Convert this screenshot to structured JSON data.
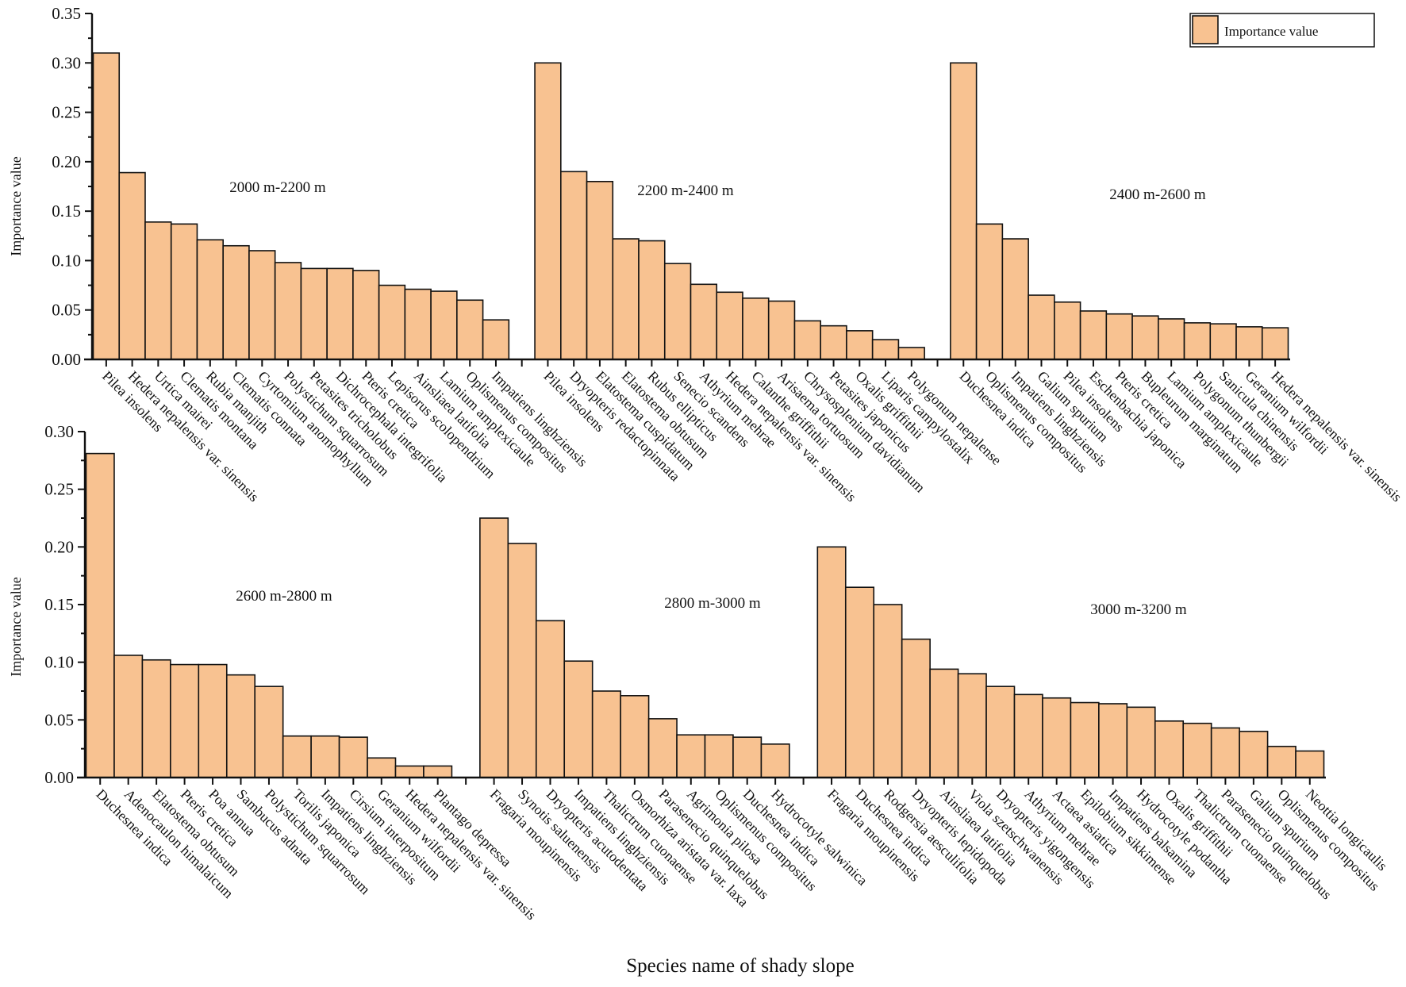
{
  "chart_data": {
    "type": "bar",
    "xlabel": "Species name of shady slope",
    "ylabel": "Importance value",
    "legend": {
      "label": "Importance value",
      "placement": "top-right"
    },
    "colors": {
      "bar": "#f8c291",
      "edge": "#111111"
    },
    "rows": [
      {
        "ylim": [
          0,
          0.35
        ],
        "yticks": [
          "0.00",
          "0.05",
          "0.10",
          "0.15",
          "0.20",
          "0.25",
          "0.30",
          "0.35"
        ],
        "groups": [
          {
            "label": "2000 m-2200 m",
            "categories": [
              "Pilea insolens",
              "Hedera nepalensis var. sinensis",
              "Urtica mairei",
              "Clematis montana",
              "Rubia manjith",
              "Clematis connata",
              "Cyrtomium anomophyllum",
              "Polystichum squarrosum",
              "Petasites tricholobus",
              "Dichrocephala integrifolia",
              "Pteris cretica",
              "Lepisorus scolopendrium",
              "Ainsliaea latifolia",
              "Lamium amplexicaule",
              "Oplismenus compositus",
              "Impatiens linghziensis"
            ],
            "values": [
              0.31,
              0.189,
              0.139,
              0.137,
              0.121,
              0.115,
              0.11,
              0.098,
              0.092,
              0.092,
              0.09,
              0.075,
              0.071,
              0.069,
              0.06,
              0.04
            ]
          },
          {
            "label": "2200 m-2400 m",
            "categories": [
              "Pilea insolens",
              "Dryopteris redactopinnata",
              "Elatostema cuspidatum",
              "Elatostema obtusum",
              "Rubus ellipticus",
              "Senecio scandens",
              "Athyrium mehrae",
              "Hedera nepalensis var. sinensis",
              "Calanthe griffithii",
              "Arisaema tortuosum",
              "Chrysosplenium davidianum",
              "Petasites japonicus",
              "Oxalis griffithii",
              "Liparis campylostalix",
              "Polygonum nepalense"
            ],
            "values": [
              0.3,
              0.19,
              0.18,
              0.122,
              0.12,
              0.097,
              0.076,
              0.068,
              0.062,
              0.059,
              0.039,
              0.034,
              0.029,
              0.02,
              0.012
            ]
          },
          {
            "label": "2400 m-2600 m",
            "categories": [
              "Duchesnea indica",
              "Oplismenus compositus",
              "Impatiens linghziensis",
              "Galium spurium",
              "Pilea insolens",
              "Eschenbachia japonica",
              "Pteris cretica",
              "Bupleurum marginatum",
              "Lamium amplexicaule",
              "Polygonum thunbergii",
              "Sanicula chinensis",
              "Geranium wilfordii",
              "Hedera nepalensis var. sinensis"
            ],
            "values": [
              0.3,
              0.137,
              0.122,
              0.065,
              0.058,
              0.049,
              0.046,
              0.044,
              0.041,
              0.037,
              0.036,
              0.033,
              0.032
            ]
          }
        ]
      },
      {
        "ylim": [
          0,
          0.3
        ],
        "yticks": [
          "0.00",
          "0.05",
          "0.10",
          "0.15",
          "0.20",
          "0.25",
          "0.30"
        ],
        "groups": [
          {
            "label": "2600 m-2800 m",
            "categories": [
              "Duchesnea indica",
              "Adenocaulon himalaicum",
              "Elatostema obtusum",
              "Pteris cretica",
              "Poa annua",
              "Sambucus adnata",
              "Polystichum squarrosum",
              "Torilis japonica",
              "Impatiens linghziensis",
              "Cirsium interpositum",
              "Geranium wilfordii",
              "Hedera nepalensis var. sinensis",
              "Plantago depressa"
            ],
            "values": [
              0.281,
              0.106,
              0.102,
              0.098,
              0.098,
              0.089,
              0.079,
              0.036,
              0.036,
              0.035,
              0.017,
              0.01,
              0.01
            ]
          },
          {
            "label": "2800 m-3000 m",
            "categories": [
              "Fragaria moupinensis",
              "Synotis saluenensis",
              "Dryopteris acutodentata",
              "Impatiens linghziensis",
              "Thalictrum cuonaense",
              "Osmorhiza aristata var. laxa",
              "Parasenecio quinquelobus",
              "Agrimonia pilosa",
              "Oplismenus compositus",
              "Duchesnea indica",
              "Hydrocotyle salwinica"
            ],
            "values": [
              0.225,
              0.203,
              0.136,
              0.101,
              0.075,
              0.071,
              0.051,
              0.037,
              0.037,
              0.035,
              0.029
            ]
          },
          {
            "label": "3000 m-3200 m",
            "categories": [
              "Fragaria moupinensis",
              "Duchesnea indica",
              "Rodgersia aesculifolia",
              "Dryopteris lepidopoda",
              "Ainsliaea latifolia",
              "Viola szetschwanensis",
              "Dryopteris yigongensis",
              "Athyrium mehrae",
              "Actaea asiatica",
              "Epilobium sikkimense",
              "Impatiens balsamina",
              "Hydrocotyle podantha",
              "Oxalis griffithii",
              "Thalictrum cuonaense",
              "Parasenecio quinquelobus",
              "Galium spurium",
              "Oplismenus compositus",
              "Neottia longicaulis"
            ],
            "values": [
              0.2,
              0.165,
              0.15,
              0.12,
              0.094,
              0.09,
              0.079,
              0.072,
              0.069,
              0.065,
              0.064,
              0.061,
              0.049,
              0.047,
              0.043,
              0.04,
              0.027,
              0.023
            ]
          }
        ]
      }
    ]
  }
}
